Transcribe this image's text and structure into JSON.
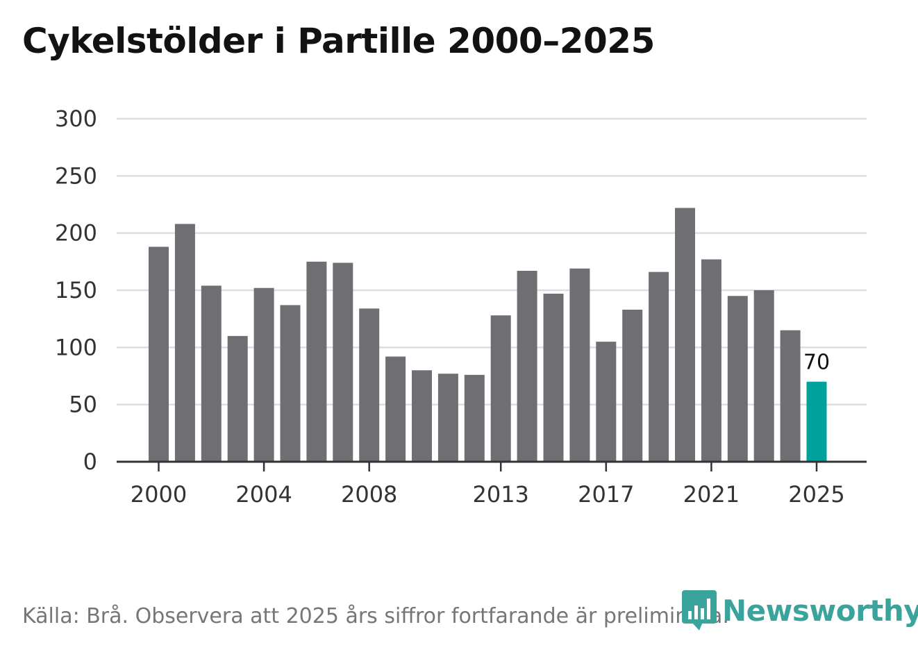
{
  "chart_data": {
    "type": "bar",
    "title": "Cykelstölder i Partille 2000–2025",
    "categories": [
      2000,
      2001,
      2002,
      2003,
      2004,
      2005,
      2006,
      2007,
      2008,
      2009,
      2010,
      2011,
      2012,
      2013,
      2014,
      2015,
      2016,
      2017,
      2018,
      2019,
      2020,
      2021,
      2022,
      2023,
      2024,
      2025
    ],
    "values": [
      188,
      208,
      154,
      110,
      152,
      137,
      175,
      174,
      134,
      92,
      80,
      77,
      76,
      128,
      167,
      147,
      169,
      105,
      133,
      166,
      222,
      177,
      145,
      150,
      115,
      70
    ],
    "highlight_index": 25,
    "highlight_label": "70",
    "x_tick_labels": [
      "2000",
      "2004",
      "2008",
      "2013",
      "2017",
      "2021",
      "2025"
    ],
    "y_ticks": [
      0,
      50,
      100,
      150,
      200,
      250,
      300
    ],
    "ylim": [
      0,
      300
    ],
    "xlabel": "",
    "ylabel": "",
    "grid": true,
    "colors": {
      "bar": "#6f6e73",
      "highlight": "#00a19a"
    }
  },
  "footer": {
    "source": "Källa: Brå. Observera att 2025 års siffror fortfarande är preliminära.",
    "logo_text": "Newsworthy",
    "logo_icon": "newsworthy-chart-icon"
  }
}
